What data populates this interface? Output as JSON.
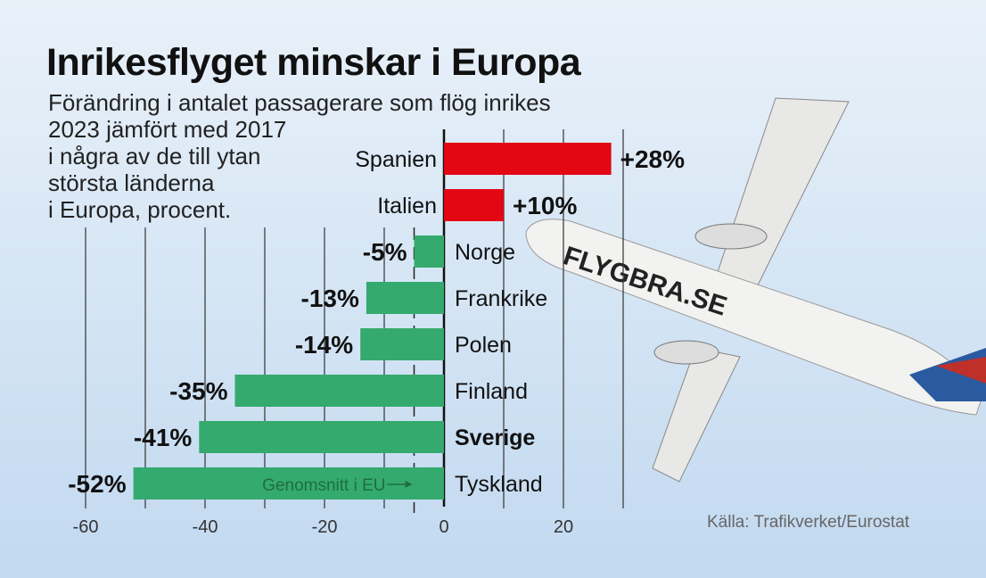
{
  "title": "Inrikesflyget minskar i Europa",
  "subtitle_lines": [
    "Förändring i antalet passagerare som flög inrikes",
    "2023 jämfört med 2017",
    "i några av de till ytan",
    "största länderna",
    "i Europa, procent."
  ],
  "source": "Källa: Trafikverket/Eurostat",
  "plane_livery": "FLYGBRA.SE",
  "chart_data": {
    "type": "bar",
    "orientation": "horizontal",
    "categories": [
      "Spanien",
      "Italien",
      "Norge",
      "Frankrike",
      "Polen",
      "Finland",
      "Sverige",
      "Tyskland"
    ],
    "values": [
      28,
      10,
      -5,
      -13,
      -14,
      -35,
      -41,
      -52
    ],
    "labels": [
      "+28%",
      "+10%",
      "-5%",
      "-13%",
      "-14%",
      "-35%",
      "-41%",
      "-52%"
    ],
    "highlight": "Sverige",
    "xlim": [
      -60,
      30
    ],
    "xticks": [
      -60,
      -40,
      -20,
      0,
      20
    ],
    "xtick_labels": [
      "-60",
      "-40",
      "-20",
      "0",
      "20"
    ],
    "grid": true,
    "grid_step": 10,
    "reference_line": {
      "value": -5,
      "label": "Genomsnitt i EU"
    },
    "colors": {
      "positive": "#e30613",
      "negative": "#35aa6e",
      "axis": "#111111",
      "grid": "#333333"
    }
  }
}
